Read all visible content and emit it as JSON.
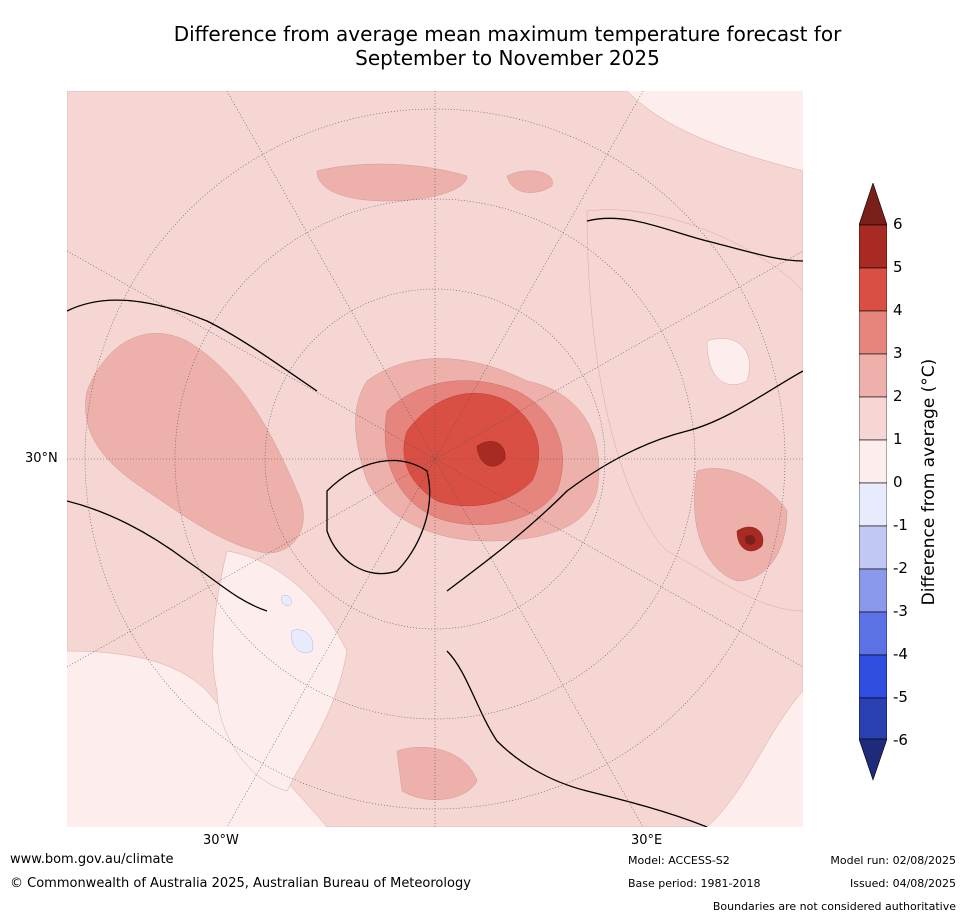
{
  "title_line1": "Difference from average mean maximum temperature forecast for",
  "title_line2": "September to November 2025",
  "map": {
    "lat_label": "30°N",
    "lon_label_west": "30°W",
    "lon_label_east": "30°E"
  },
  "colorbar": {
    "title": "Difference from average (°C)",
    "ticks": [
      "6",
      "5",
      "4",
      "3",
      "2",
      "1",
      "0",
      "-1",
      "-2",
      "-3",
      "-4",
      "-5",
      "-6"
    ],
    "colors": {
      "above_6": "#7a1f1a",
      "5_6": "#a82a23",
      "4_5": "#d94f43",
      "3_4": "#e6857d",
      "2_3": "#edb0ab",
      "1_2": "#f5d6d3",
      "0_1": "#fdeeed",
      "-1_0": "#e8ebfb",
      "-2_-1": "#c1c8f3",
      "-3_-2": "#8a99ec",
      "-4_-3": "#5b71e4",
      "-5_-4": "#2f4ee0",
      "-6_-5": "#2a3fb0",
      "below_-6": "#1e2a7a"
    }
  },
  "footer": {
    "website": "www.bom.gov.au/climate",
    "copyright": "© Commonwealth of Australia 2025, Australian Bureau of Meteorology",
    "model": "Model: ACCESS-S2",
    "base_period": "Base period: 1981-2018",
    "model_run": "Model run: 02/08/2025",
    "issued": "Issued: 04/08/2025",
    "disclaimer": "Boundaries are not considered authoritative"
  }
}
